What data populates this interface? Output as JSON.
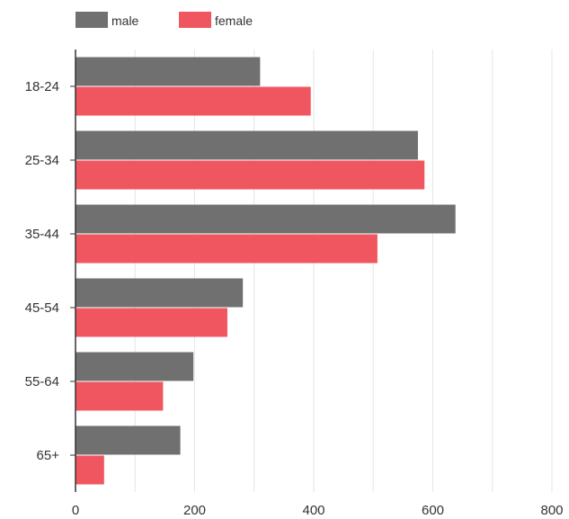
{
  "chart_data": {
    "type": "bar",
    "orientation": "horizontal",
    "categories": [
      "18-24",
      "25-34",
      "35-44",
      "45-54",
      "55-64",
      "65+"
    ],
    "series": [
      {
        "name": "male",
        "color": "#707070",
        "values": [
          310,
          575,
          638,
          281,
          198,
          176
        ]
      },
      {
        "name": "female",
        "color": "#f0565f",
        "values": [
          395,
          586,
          507,
          255,
          147,
          48
        ]
      }
    ],
    "xlim": [
      0,
      800
    ],
    "x_ticks": [
      0,
      200,
      400,
      600,
      800
    ],
    "x_tick_labels": [
      "0",
      "200",
      "400",
      "600",
      "800"
    ],
    "title": "",
    "xlabel": "",
    "ylabel": "",
    "grid": true,
    "legend_position": "top-left"
  }
}
